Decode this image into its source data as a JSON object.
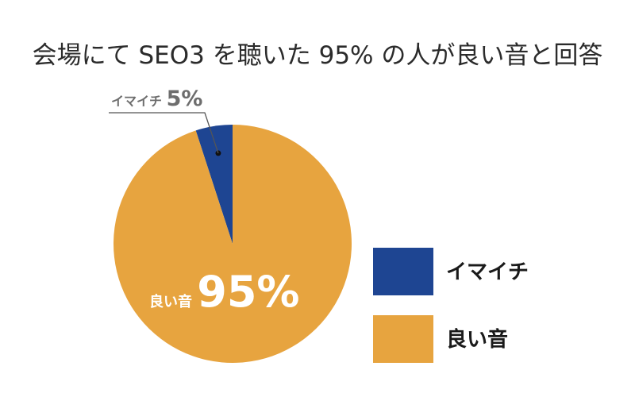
{
  "chart_data": {
    "type": "pie",
    "title": "会場にて SEO3 を聴いた 95% の人が良い音と回答",
    "slices": [
      {
        "label": "イマイチ",
        "value": 5,
        "value_label": "5%",
        "color": "#1e4592"
      },
      {
        "label": "良い音",
        "value": 95,
        "value_label": "95%",
        "color": "#e7a43f"
      }
    ],
    "legend": {
      "placement": "right",
      "entries": [
        "イマイチ",
        "良い音"
      ]
    }
  }
}
